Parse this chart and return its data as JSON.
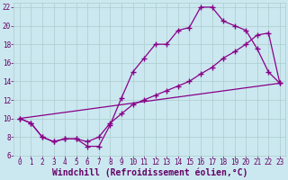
{
  "xlabel": "Windchill (Refroidissement éolien,°C)",
  "bg_color": "#cbe8f0",
  "line_color": "#880088",
  "ylim": [
    6,
    22.5
  ],
  "xlim": [
    -0.5,
    23.5
  ],
  "yticks": [
    6,
    8,
    10,
    12,
    14,
    16,
    18,
    20,
    22
  ],
  "xticks": [
    0,
    1,
    2,
    3,
    4,
    5,
    6,
    7,
    8,
    9,
    10,
    11,
    12,
    13,
    14,
    15,
    16,
    17,
    18,
    19,
    20,
    21,
    22,
    23
  ],
  "line1_x": [
    0,
    1,
    2,
    3,
    4,
    5,
    6,
    7,
    8,
    9,
    10,
    11,
    12,
    13,
    14,
    15,
    16,
    17,
    18,
    19,
    20,
    21,
    22,
    23
  ],
  "line1_y": [
    10.0,
    9.5,
    8.0,
    7.5,
    7.8,
    7.8,
    7.0,
    7.0,
    9.3,
    12.2,
    15.0,
    16.5,
    18.0,
    18.0,
    19.5,
    19.8,
    22.0,
    22.0,
    20.5,
    20.0,
    19.5,
    17.5,
    15.0,
    13.8
  ],
  "line2_x": [
    0,
    1,
    2,
    3,
    4,
    5,
    6,
    7,
    8,
    9,
    10,
    11,
    12,
    13,
    14,
    15,
    16,
    17,
    18,
    19,
    20,
    21,
    22,
    23
  ],
  "line2_y": [
    10.0,
    9.5,
    8.0,
    7.5,
    7.8,
    7.8,
    7.5,
    8.0,
    9.5,
    10.5,
    11.5,
    12.0,
    12.5,
    13.0,
    13.5,
    14.0,
    14.8,
    15.5,
    16.5,
    17.2,
    18.0,
    19.0,
    19.2,
    13.8
  ],
  "line3_x": [
    0,
    23
  ],
  "line3_y": [
    10.0,
    13.8
  ],
  "grid_color": "#aacccc",
  "font_color": "#660066",
  "tick_fontsize": 5.5,
  "xlabel_fontsize": 7.0
}
